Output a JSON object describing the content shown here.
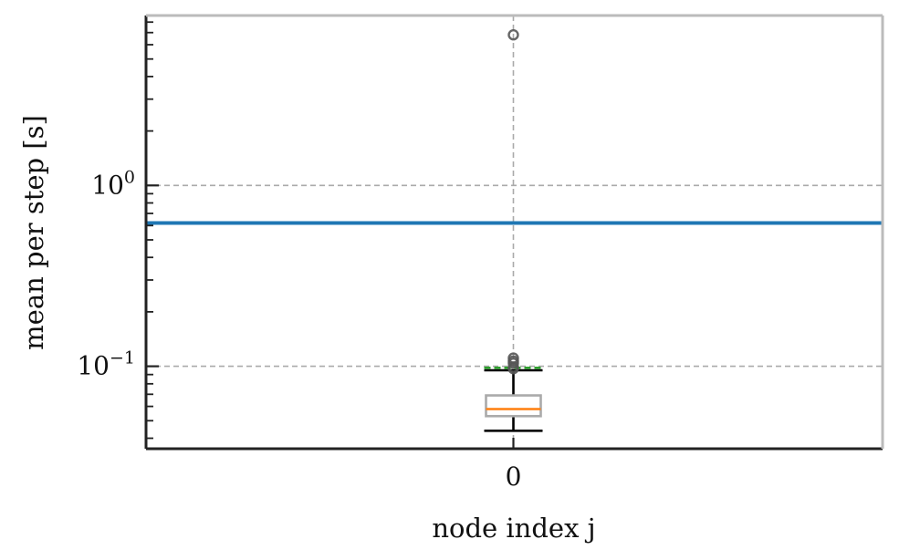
{
  "chart_data": {
    "type": "box",
    "xlabel": "node index j",
    "ylabel": "mean per step [s]",
    "yscale": "log",
    "ylim": [
      0.035,
      8.7
    ],
    "categories": [
      "0"
    ],
    "y_ticks": [
      {
        "value": 1.0,
        "base": "10",
        "exp": "0"
      },
      {
        "value": 0.1,
        "base": "10",
        "exp": "−1"
      }
    ],
    "grid": true,
    "boxes": [
      {
        "category": "0",
        "whisker_low": 0.044,
        "q1": 0.053,
        "median": 0.058,
        "q3": 0.069,
        "whisker_high": 0.095,
        "mean": 0.098,
        "outliers": [
          0.097,
          0.099,
          0.104,
          0.107,
          0.111,
          6.8
        ]
      }
    ],
    "reference_line": {
      "value": 0.62,
      "color": "#1f77b4"
    },
    "colors": {
      "box": "#aaaaaa",
      "median": "#ff7f0e",
      "mean": "#2ca02c",
      "whisker": "#000000",
      "outlier": "#555555",
      "grid": "#aaaaaa",
      "axis_dark": "#222222",
      "axis_light": "#bbbbbb"
    }
  }
}
